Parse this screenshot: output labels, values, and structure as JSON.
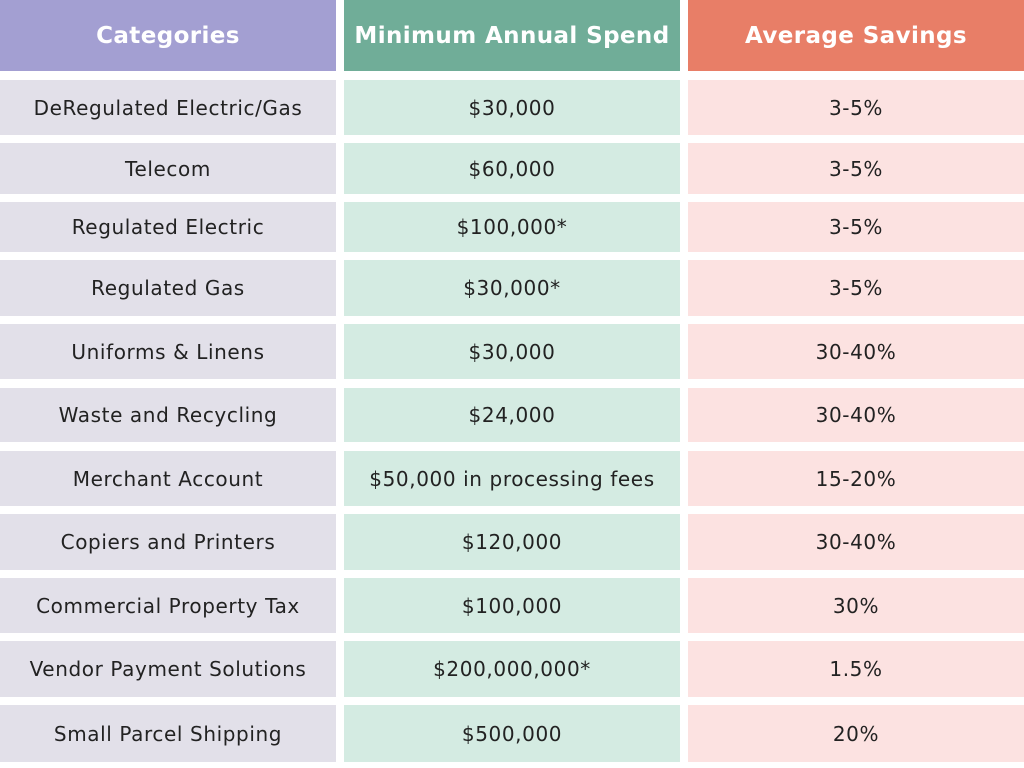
{
  "headers": {
    "categories": "Categories",
    "minimum_annual_spend": "Minimum Annual Spend",
    "average_savings": "Average Savings"
  },
  "rows": [
    {
      "category": "DeRegulated Electric/Gas",
      "spend": "$30,000",
      "savings": "3-5%"
    },
    {
      "category": "Telecom",
      "spend": "$60,000",
      "savings": "3-5%"
    },
    {
      "category": "Regulated Electric",
      "spend": "$100,000*",
      "savings": "3-5%"
    },
    {
      "category": "Regulated Gas",
      "spend": "$30,000*",
      "savings": "3-5%"
    },
    {
      "category": "Uniforms & Linens",
      "spend": "$30,000",
      "savings": "30-40%"
    },
    {
      "category": "Waste and Recycling",
      "spend": "$24,000",
      "savings": "30-40%"
    },
    {
      "category": "Merchant Account",
      "spend": "$50,000 in processing fees",
      "savings": "15-20%"
    },
    {
      "category": "Copiers and Printers",
      "spend": "$120,000",
      "savings": "30-40%"
    },
    {
      "category": "Commercial Property Tax",
      "spend": "$100,000",
      "savings": "30%"
    },
    {
      "category": "Vendor Payment Solutions",
      "spend": "$200,000,000*",
      "savings": "1.5%"
    },
    {
      "category": "Small Parcel Shipping",
      "spend": "$500,000",
      "savings": "20%"
    }
  ],
  "colors": {
    "header_categories": "#a39fd2",
    "header_spend": "#70ad98",
    "header_savings": "#e87e67",
    "row_categories": "#e2e0e9",
    "row_spend": "#d4ebe2",
    "row_savings": "#fce2e1"
  }
}
